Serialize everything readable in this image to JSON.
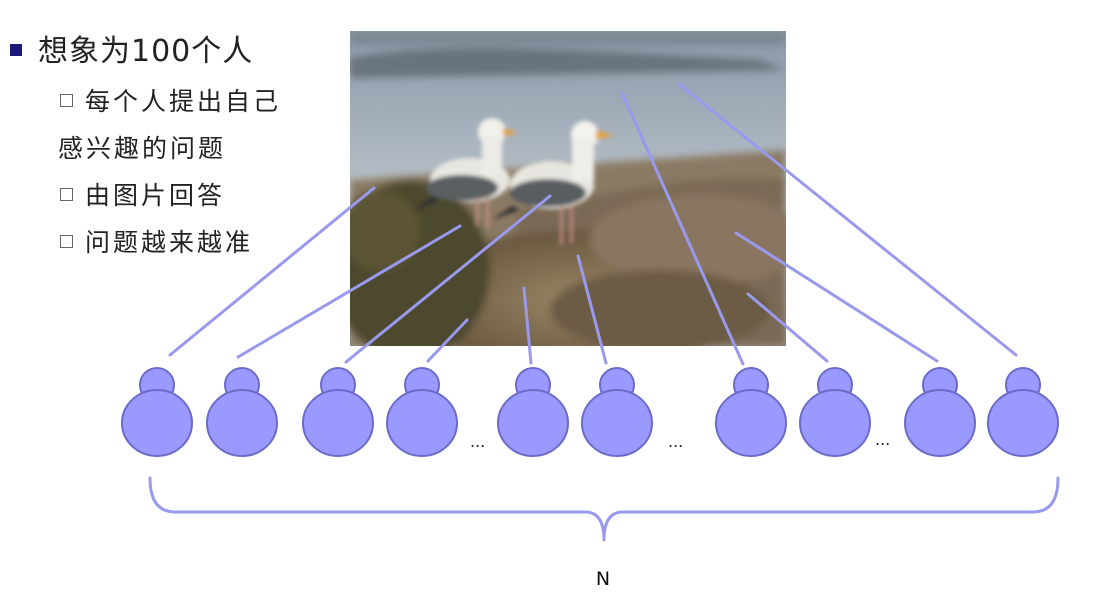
{
  "bullets": {
    "main": "想象为100个人",
    "sub1_line1": "每个人提出自己",
    "sub1_line2": "感兴趣的问题",
    "sub2": "由图片回答",
    "sub3": "问题越来越准"
  },
  "people_count_visible": 10,
  "ellipsis": [
    "...",
    "...",
    "..."
  ],
  "brace_label": "N",
  "colors": {
    "person_fill": "#9999ff",
    "person_stroke": "#6b6bc8",
    "line": "#9999ee",
    "marker": "#1a1a7a"
  }
}
